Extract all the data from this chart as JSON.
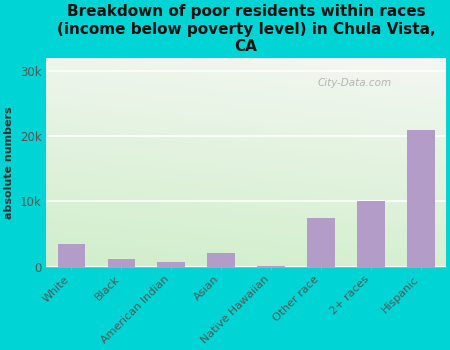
{
  "categories": [
    "White",
    "Black",
    "American Indian",
    "Asian",
    "Native Hawaiian",
    "Other race",
    "2+ races",
    "Hispanic"
  ],
  "values": [
    3500,
    1200,
    700,
    2000,
    100,
    7500,
    10000,
    21000
  ],
  "bar_color": "#b39cc8",
  "title": "Breakdown of poor residents within races\n(income below poverty level) in Chula Vista,\nCA",
  "ylabel": "absolute numbers",
  "ylim": [
    0,
    32000
  ],
  "yticks": [
    0,
    10000,
    20000,
    30000
  ],
  "ytick_labels": [
    "0",
    "10k",
    "20k",
    "30k"
  ],
  "background_outer": "#00d4d4",
  "bg_top_left": "#b8e8b0",
  "bg_bottom_right": "#f0f5ee",
  "watermark": "City-Data.com",
  "title_fontsize": 11,
  "label_fontsize": 8,
  "tick_fontsize": 8.5
}
